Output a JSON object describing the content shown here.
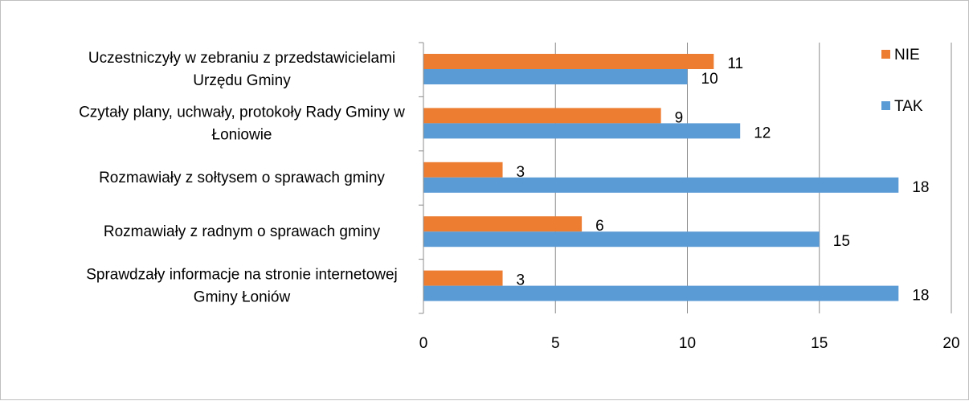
{
  "chart_data": {
    "type": "bar",
    "orientation": "horizontal",
    "categories": [
      [
        "Uczestniczyły w zebraniu z przedstawicielami",
        "Urzędu Gminy"
      ],
      [
        "Czytały plany, uchwały, protokoły Rady Gminy w",
        "Łoniowie"
      ],
      [
        "Rozmawiały z sołtysem o sprawach gminy"
      ],
      [
        "Rozmawiały z radnym o sprawach gminy"
      ],
      [
        "Sprawdzały informacje na stronie internetowej",
        "Gminy Łoniów"
      ]
    ],
    "series": [
      {
        "name": "NIE",
        "color": "#ed7d31",
        "values": [
          11,
          9,
          3,
          6,
          3
        ]
      },
      {
        "name": "TAK",
        "color": "#5b9bd5",
        "values": [
          10,
          12,
          18,
          15,
          18
        ]
      }
    ],
    "xlim": [
      0,
      20
    ],
    "xticks": [
      0,
      5,
      10,
      15,
      20
    ],
    "grid": true,
    "legend": "right",
    "title": "",
    "xlabel": "",
    "ylabel": ""
  }
}
